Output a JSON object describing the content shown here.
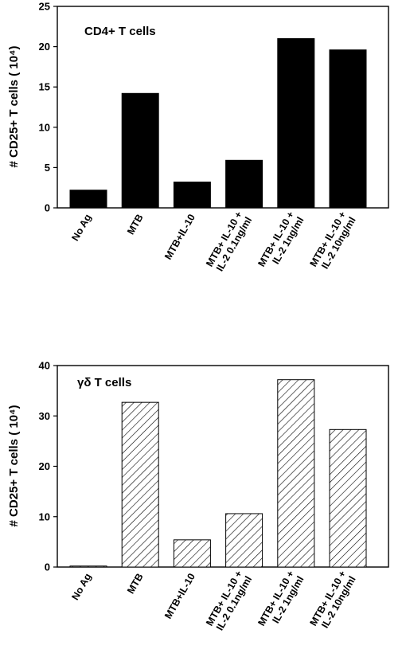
{
  "chart_data": [
    {
      "type": "bar",
      "title": "CD4+ T cells",
      "ylabel": "# CD25+ T cells  (  10⁴)",
      "ylim": [
        0,
        25
      ],
      "yticks": [
        0,
        5,
        10,
        15,
        20,
        25
      ],
      "categories": [
        [
          "No Ag"
        ],
        [
          "MTB"
        ],
        [
          "MTB+IL-10"
        ],
        [
          "MTB+ IL-10 +",
          "IL-2   0.1ng/ml"
        ],
        [
          "MTB+ IL-10 +",
          "IL-2   1ng/ml"
        ],
        [
          "MTB+ IL-10 +",
          "IL-2   10ng/ml"
        ]
      ],
      "values": [
        2.2,
        14.2,
        3.2,
        5.9,
        21.0,
        19.6
      ],
      "bar_style": "solid",
      "bar_color": "#000000",
      "grid": false
    },
    {
      "type": "bar",
      "title": "γδ T cells",
      "ylabel": "# CD25+ T cells  (  10⁴)",
      "ylim": [
        0,
        40
      ],
      "yticks": [
        0,
        10,
        20,
        30,
        40
      ],
      "categories": [
        [
          "No Ag"
        ],
        [
          "MTB"
        ],
        [
          "MTB+IL-10"
        ],
        [
          "MTB+ IL-10 +",
          "IL-2   0.1ng/ml"
        ],
        [
          "MTB+ IL-10 +",
          "IL-2   1ng/ml"
        ],
        [
          "MTB+ IL-10 +",
          "IL-2   10ng/ml"
        ]
      ],
      "values": [
        0.2,
        32.7,
        5.4,
        10.6,
        37.2,
        27.3
      ],
      "bar_style": "hatched",
      "bar_color": "#000000",
      "grid": false
    }
  ]
}
